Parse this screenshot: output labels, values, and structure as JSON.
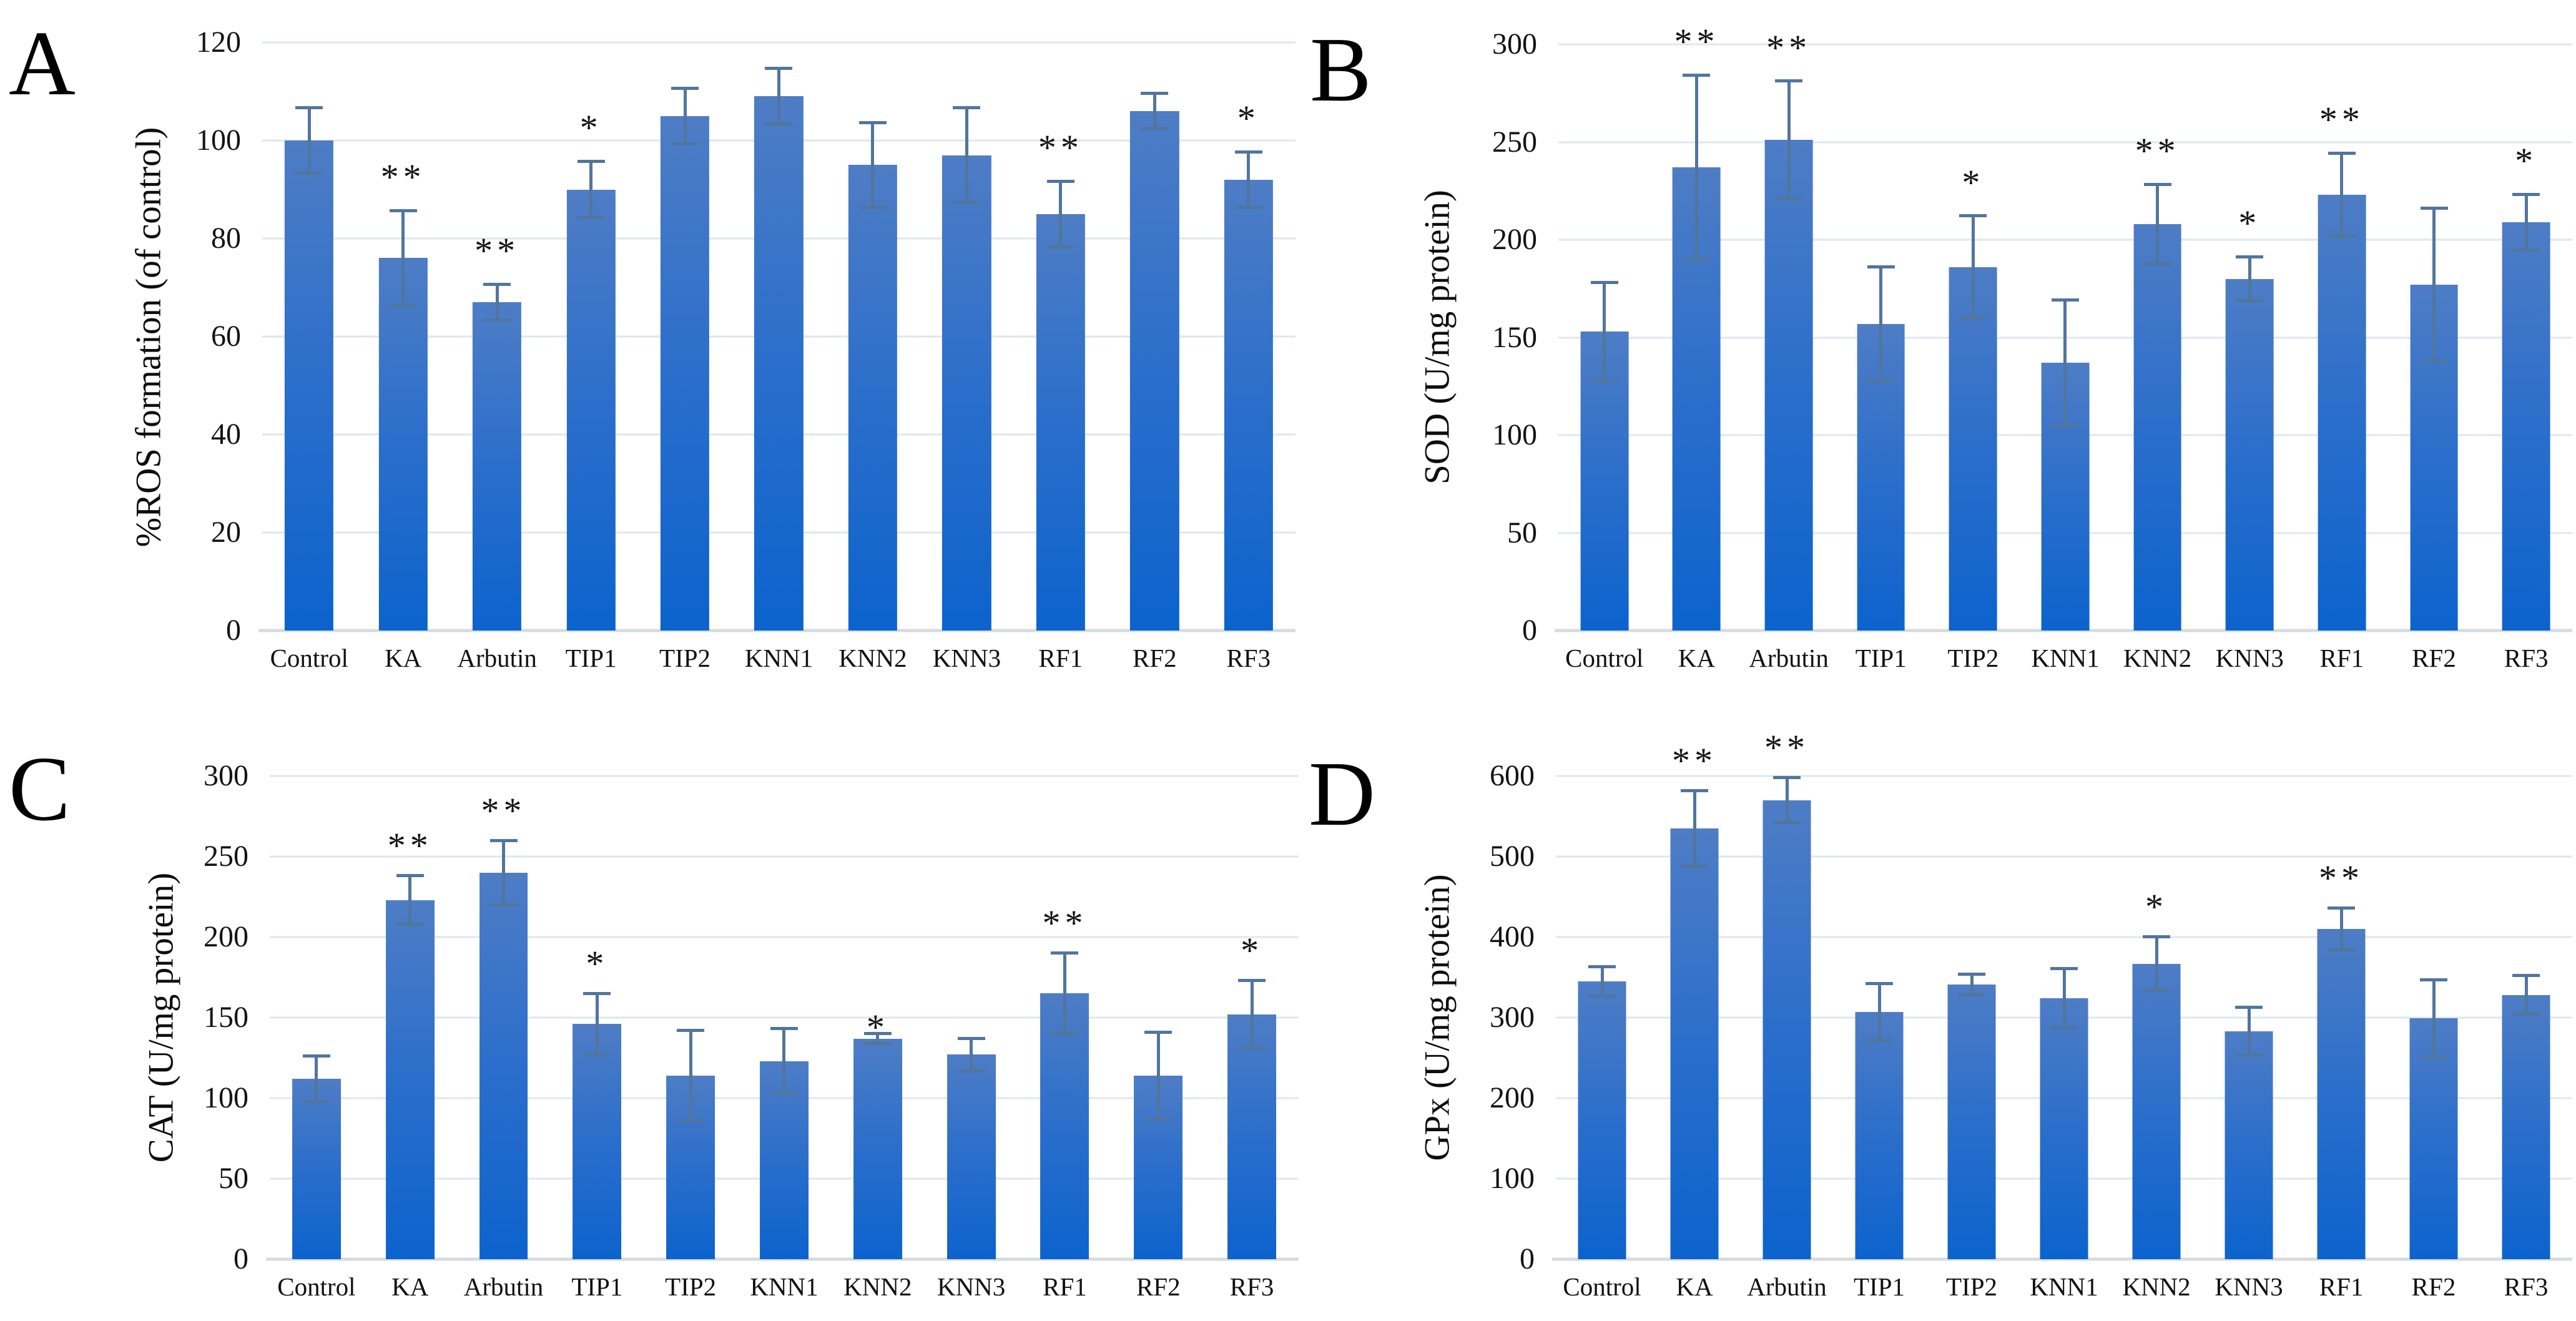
{
  "figure": {
    "background": "#ffffff",
    "bar_gradient_top": "#4e7dc5",
    "bar_gradient_mid": "#2b6ecb",
    "bar_gradient_bottom": "#0c63cd",
    "error_bar_color": "#52759d",
    "gridline_color": "#dde7f2",
    "axis_line_color": "#d6dbe1",
    "text_color": "#111111",
    "significance_color": "#141414"
  },
  "chart_data": [
    {
      "type": "bar",
      "panel": "A",
      "ylabel": "%ROS formation (of control)",
      "xlabel": "",
      "ylim": [
        0,
        120
      ],
      "ytick_step": 20,
      "grid": true,
      "legend": "none",
      "categories": [
        "Control",
        "KA",
        "Arbutin",
        "TIP1",
        "TIP2",
        "KNN1",
        "KNN2",
        "KNN3",
        "RF1",
        "RF2",
        "RF3"
      ],
      "values": [
        100,
        76,
        67,
        90,
        105,
        109,
        95,
        97,
        85,
        106,
        92
      ],
      "errors": [
        7,
        10,
        4,
        6,
        6,
        6,
        9,
        10,
        7,
        4,
        6
      ],
      "sig": [
        "",
        "**",
        "**",
        "*",
        "",
        "",
        "",
        "",
        "**",
        "",
        "*"
      ]
    },
    {
      "type": "bar",
      "panel": "B",
      "ylabel": "SOD (U/mg protein)",
      "xlabel": "",
      "ylim": [
        0,
        300
      ],
      "ytick_step": 50,
      "grid": true,
      "legend": "none",
      "categories": [
        "Control",
        "KA",
        "Arbutin",
        "TIP1",
        "TIP2",
        "KNN1",
        "KNN2",
        "KNN3",
        "RF1",
        "RF2",
        "RF3"
      ],
      "values": [
        153,
        237,
        251,
        157,
        186,
        137,
        208,
        180,
        223,
        177,
        209
      ],
      "errors": [
        26,
        48,
        31,
        30,
        27,
        33,
        21,
        12,
        22,
        40,
        15
      ],
      "sig": [
        "",
        "**",
        "**",
        "",
        "*",
        "",
        "**",
        "*",
        "**",
        "",
        "*"
      ]
    },
    {
      "type": "bar",
      "panel": "C",
      "ylabel": "CAT (U/mg protein)",
      "xlabel": "",
      "ylim": [
        0,
        300
      ],
      "ytick_step": 50,
      "grid": true,
      "legend": "none",
      "categories": [
        "Control",
        "KA",
        "Arbutin",
        "TIP1",
        "TIP2",
        "KNN1",
        "KNN2",
        "KNN3",
        "RF1",
        "RF2",
        "RF3"
      ],
      "values": [
        112,
        223,
        240,
        146,
        114,
        123,
        137,
        127,
        165,
        114,
        152
      ],
      "errors": [
        15,
        16,
        21,
        20,
        29,
        21,
        4,
        11,
        26,
        28,
        22
      ],
      "sig": [
        "",
        "**",
        "**",
        "*",
        "",
        "",
        "*",
        "",
        "**",
        "",
        "*"
      ],
      "sig_at_bar_top": [
        false,
        false,
        false,
        false,
        false,
        false,
        true,
        false,
        false,
        false,
        false
      ]
    },
    {
      "type": "bar",
      "panel": "D",
      "ylabel": "GPx (U/mg protein)",
      "xlabel": "",
      "ylim": [
        0,
        600
      ],
      "ytick_step": 100,
      "grid": true,
      "legend": "none",
      "categories": [
        "Control",
        "KA",
        "Arbutin",
        "TIP1",
        "TIP2",
        "KNN1",
        "KNN2",
        "KNN3",
        "RF1",
        "RF2",
        "RF3"
      ],
      "values": [
        345,
        535,
        570,
        307,
        341,
        324,
        367,
        283,
        410,
        299,
        328
      ],
      "errors": [
        20,
        49,
        30,
        37,
        15,
        39,
        35,
        32,
        28,
        50,
        26
      ],
      "sig": [
        "",
        "**",
        "**",
        "",
        "",
        "",
        "*",
        "",
        "**",
        "",
        ""
      ]
    }
  ]
}
